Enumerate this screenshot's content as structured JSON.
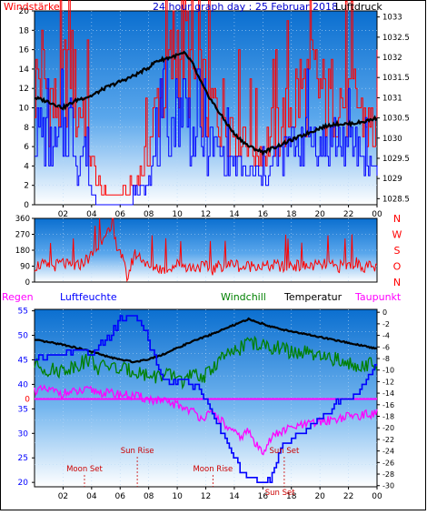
{
  "chart_data": [
    {
      "type": "line",
      "title": "24 hour graph day : 25 Februar 2018",
      "left_axis_label": "Windstärke",
      "right_axis_label": "Luftdruck",
      "x_ticks": [
        "02",
        "04",
        "06",
        "08",
        "10",
        "12",
        "14",
        "16",
        "18",
        "20",
        "22",
        "00"
      ],
      "x_range_hours": [
        0,
        24
      ],
      "y_left_ticks": [
        "0",
        "2",
        "4",
        "6",
        "8",
        "10",
        "12",
        "14",
        "16",
        "18",
        "20"
      ],
      "y_left_range": [
        0,
        20
      ],
      "y_right_ticks": [
        "1028.5",
        "1029",
        "1029.5",
        "1030",
        "1030.5",
        "1031",
        "1031.5",
        "1032",
        "1032.5",
        "1033"
      ],
      "y_right_range": [
        1028.35,
        1033.15
      ],
      "grid": true,
      "colors": {
        "gust": "#ff0000",
        "wind": "#0000ff",
        "pressure": "#000000"
      },
      "series": [
        {
          "key": "gust",
          "axis": "left",
          "x": [
            0,
            0.5,
            1,
            1.5,
            2,
            2.5,
            3,
            3.5,
            4,
            4.5,
            5,
            5.5,
            6,
            6.5,
            7,
            7.5,
            8,
            8.5,
            9,
            9.5,
            10,
            10.5,
            11,
            11.5,
            12,
            12.5,
            13,
            13.5,
            14,
            14.5,
            15,
            15.5,
            16,
            16.5,
            17,
            17.5,
            18,
            18.5,
            19,
            19.5,
            20,
            20.5,
            21,
            21.5,
            22,
            22.5,
            23,
            23.5,
            24
          ],
          "values": [
            12,
            14,
            11,
            10,
            12,
            16,
            9,
            11,
            4,
            2,
            1,
            1,
            1,
            1,
            2,
            4,
            6,
            10,
            13,
            14,
            17,
            18,
            13,
            12,
            11,
            10,
            10,
            9,
            8,
            8,
            7,
            6,
            6,
            7,
            8,
            9,
            10,
            12,
            12,
            13,
            12,
            10,
            12,
            11,
            10,
            11,
            9,
            8,
            8
          ]
        },
        {
          "key": "wind",
          "axis": "left",
          "x": [
            0,
            0.5,
            1,
            1.5,
            2,
            2.5,
            3,
            3.5,
            4,
            4.5,
            5,
            5.5,
            6,
            6.5,
            7,
            7.5,
            8,
            8.5,
            9,
            9.5,
            10,
            10.5,
            11,
            11.5,
            12,
            12.5,
            13,
            13.5,
            14,
            14.5,
            15,
            15.5,
            16,
            16.5,
            17,
            17.5,
            18,
            18.5,
            19,
            19.5,
            20,
            20.5,
            21,
            21.5,
            22,
            22.5,
            23,
            23.5,
            24
          ],
          "values": [
            7,
            8,
            6,
            6,
            7,
            9,
            4,
            6,
            1,
            0,
            0,
            0,
            0,
            0,
            1,
            2,
            3,
            5,
            7,
            8,
            10,
            11,
            7,
            7,
            6,
            6,
            5,
            5,
            4,
            4,
            3,
            3,
            3,
            4,
            5,
            5,
            6,
            7,
            7,
            7,
            6,
            6,
            7,
            6,
            6,
            6,
            5,
            4,
            4
          ]
        },
        {
          "key": "pressure",
          "axis": "right",
          "x": [
            0,
            1,
            2,
            3,
            4,
            5,
            6,
            7,
            8,
            8.5,
            9,
            9.5,
            10,
            10.5,
            11,
            11.5,
            12,
            13,
            14,
            15,
            16,
            17,
            18,
            19,
            20,
            21,
            22,
            23,
            24
          ],
          "values": [
            1031.0,
            1030.9,
            1030.75,
            1030.95,
            1031.05,
            1031.25,
            1031.4,
            1031.55,
            1031.75,
            1031.9,
            1031.95,
            1032.0,
            1032.05,
            1032.1,
            1031.9,
            1031.5,
            1031.15,
            1030.6,
            1030.1,
            1029.8,
            1029.65,
            1029.8,
            1029.95,
            1030.1,
            1030.25,
            1030.35,
            1030.35,
            1030.4,
            1030.5
          ]
        }
      ]
    },
    {
      "type": "line",
      "right_axis_letters": [
        "N",
        "W",
        "S",
        "O",
        "N"
      ],
      "y_left_ticks": [
        "0",
        "90",
        "180",
        "270",
        "360"
      ],
      "y_range": [
        0,
        360
      ],
      "x_range_hours": [
        0,
        24
      ],
      "grid": true,
      "colors": {
        "direction": "#ff0000"
      },
      "series": [
        {
          "key": "direction",
          "x": [
            0,
            0.5,
            1,
            1.5,
            2,
            2.5,
            3,
            3.5,
            4,
            4.5,
            5,
            5.5,
            6,
            6.5,
            7,
            7.5,
            8,
            8.5,
            9,
            9.5,
            10,
            10.5,
            11,
            11.5,
            12,
            12.5,
            13,
            13.5,
            14,
            14.5,
            15,
            15.5,
            16,
            16.5,
            17,
            17.5,
            18,
            18.5,
            19,
            19.5,
            20,
            20.5,
            21,
            21.5,
            22,
            22.5,
            23,
            23.5,
            24
          ],
          "values": [
            90,
            100,
            80,
            95,
            110,
            85,
            90,
            120,
            150,
            200,
            300,
            250,
            180,
            20,
            160,
            140,
            80,
            90,
            70,
            85,
            100,
            95,
            80,
            90,
            85,
            70,
            95,
            90,
            110,
            80,
            90,
            100,
            85,
            90,
            95,
            80,
            100,
            90,
            85,
            95,
            90,
            100,
            85,
            90,
            95,
            110,
            90,
            85,
            80
          ]
        }
      ]
    },
    {
      "type": "line",
      "legend": [
        "Regen",
        "Luftfeuchte",
        "Windchill",
        "Temperatur",
        "Taupunkt"
      ],
      "y_left_ticks": [
        "20",
        "25",
        "30",
        "35",
        "40",
        "45",
        "50",
        "55"
      ],
      "y_left_range": [
        19.1,
        55.3
      ],
      "y_right_ticks": [
        "0",
        "-2",
        "-4",
        "-6",
        "-8",
        "-10",
        "-12",
        "-14",
        "-16",
        "-18",
        "-20",
        "-22",
        "-24",
        "-26",
        "-28",
        "-30"
      ],
      "y_right_range": [
        -30.2,
        0.5
      ],
      "rain_axis_label": "0",
      "x_ticks": [
        "02",
        "04",
        "06",
        "08",
        "10",
        "12",
        "14",
        "16",
        "18",
        "20",
        "22",
        "00"
      ],
      "x_range_hours": [
        0,
        24
      ],
      "grid": true,
      "annotations": [
        {
          "label": "Moon Set",
          "hour": 3.5
        },
        {
          "label": "Sun Rise",
          "hour": 7.2
        },
        {
          "label": "Moon Rise",
          "hour": 12.5
        },
        {
          "label": "Sun Set",
          "hour": 17.5
        },
        {
          "label": "Sun Set",
          "hour": 17.2
        }
      ],
      "colors": {
        "rain": "#ff00ff",
        "humidity": "#0000ff",
        "windchill": "#008000",
        "temperature": "#000000",
        "dewpoint": "#ff00ff"
      },
      "series": [
        {
          "key": "humidity",
          "axis": "left",
          "x": [
            0,
            1,
            2,
            3,
            4,
            5,
            5.5,
            6,
            6.5,
            7,
            7.5,
            8,
            8.5,
            9,
            9.5,
            10,
            10.5,
            11,
            11.5,
            12,
            12.5,
            13,
            13.5,
            14,
            14.5,
            15,
            15.5,
            16,
            16.5,
            17,
            17.5,
            18,
            18.5,
            19,
            19.5,
            20,
            20.5,
            21,
            21.5,
            22,
            22.5,
            23,
            23.5,
            24
          ],
          "values": [
            45,
            46,
            46,
            47,
            46,
            49,
            51,
            53,
            54,
            54,
            52,
            49,
            44,
            41,
            40,
            41,
            41,
            40,
            39,
            37,
            34,
            31,
            28,
            25,
            22,
            21,
            21,
            20,
            21,
            25,
            28,
            29,
            30,
            31,
            32,
            33,
            34,
            36,
            37,
            37,
            38,
            40,
            42,
            44
          ]
        },
        {
          "key": "windchill",
          "axis": "right",
          "x": [
            0,
            1,
            2,
            3,
            4,
            4.5,
            5,
            6,
            7,
            8,
            9,
            10,
            10.5,
            11,
            12,
            13,
            14,
            15,
            16,
            17,
            18,
            19,
            20,
            21,
            22,
            23,
            24
          ],
          "values": [
            -9,
            -10,
            -10,
            -9,
            -8,
            -10,
            -9,
            -10,
            -10,
            -11,
            -11,
            -11,
            -12,
            -11,
            -11,
            -8,
            -7,
            -5,
            -6,
            -6,
            -7,
            -7,
            -8,
            -8,
            -9,
            -9,
            -9
          ]
        },
        {
          "key": "temperature",
          "axis": "right",
          "x": [
            0,
            1,
            2,
            3,
            4,
            5,
            6,
            7,
            8,
            9,
            10,
            11,
            12,
            13,
            14,
            15,
            16,
            17,
            18,
            19,
            20,
            21,
            22,
            23,
            24
          ],
          "values": [
            -4.8,
            -5.2,
            -5.6,
            -6.2,
            -6.8,
            -7.6,
            -8.2,
            -8.6,
            -8.1,
            -7.3,
            -6.2,
            -5.1,
            -4.2,
            -3.2,
            -2.2,
            -1.2,
            -2.0,
            -2.8,
            -3.3,
            -3.8,
            -4.3,
            -4.8,
            -5.3,
            -5.8,
            -6.3
          ]
        },
        {
          "key": "dewpoint",
          "axis": "right",
          "x": [
            0,
            1,
            2,
            3,
            4,
            5,
            6,
            7,
            8,
            9,
            10,
            11,
            11.5,
            12,
            12.5,
            13,
            13.5,
            14,
            14.5,
            15,
            15.5,
            16,
            16.5,
            17,
            18,
            19,
            20,
            21,
            22,
            23,
            24
          ],
          "values": [
            -13.5,
            -13.5,
            -14,
            -13.8,
            -13.5,
            -14,
            -14.2,
            -14.5,
            -15,
            -15.5,
            -16,
            -17,
            -18,
            -18,
            -17.5,
            -18.5,
            -20,
            -21,
            -21.5,
            -20.5,
            -23,
            -24,
            -22,
            -21,
            -20,
            -19.5,
            -19,
            -18.5,
            -18,
            -17.8,
            -17.5
          ]
        },
        {
          "key": "rain",
          "axis": "rain",
          "x": [
            0,
            24
          ],
          "values": [
            0,
            0
          ]
        }
      ]
    }
  ]
}
